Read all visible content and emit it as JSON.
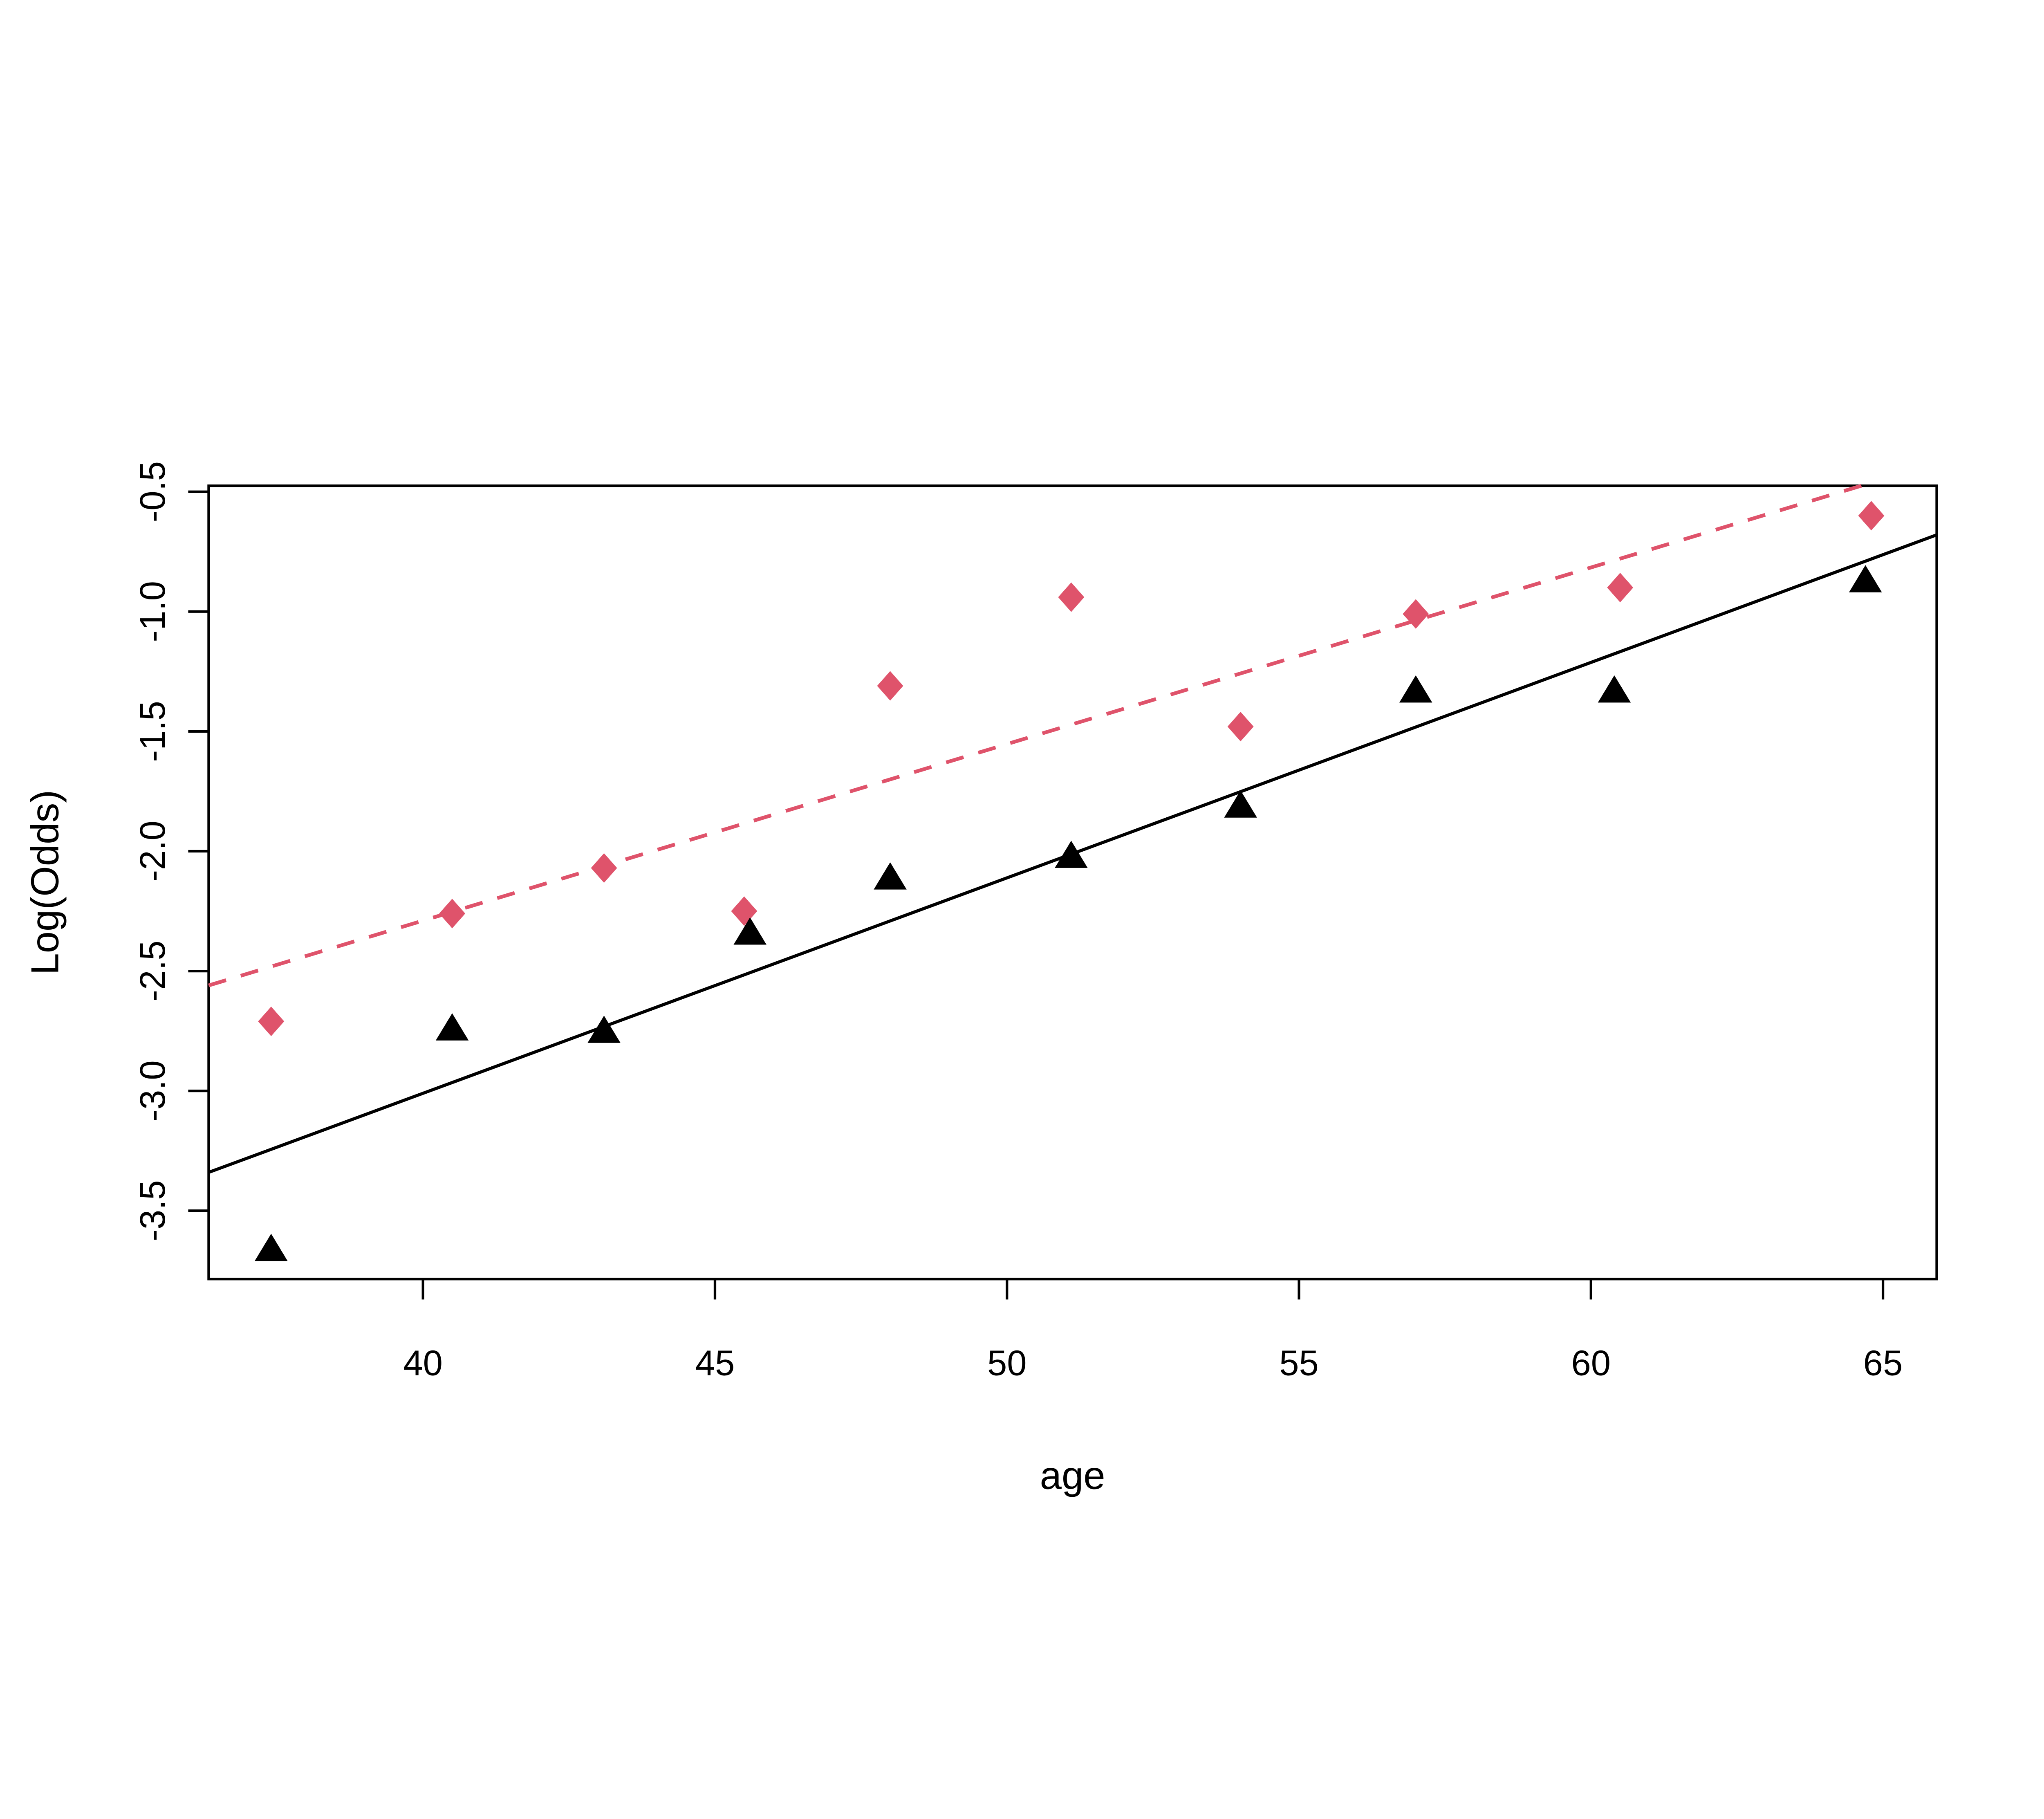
{
  "chart_data": {
    "type": "scatter",
    "title": "",
    "xlabel": "age",
    "ylabel": "Log(Odds)",
    "x_ticks": [
      40,
      45,
      50,
      55,
      60,
      65
    ],
    "y_ticks": [
      -0.5,
      -1.0,
      -1.5,
      -2.0,
      -2.5,
      -3.0,
      -3.5
    ],
    "xlim": [
      36.33,
      65.92
    ],
    "ylim": [
      -3.785,
      -0.475
    ],
    "grid": false,
    "legend": "none",
    "background_color": "#ffffff",
    "series": [
      {
        "name": "diamond-series",
        "marker": "diamond",
        "color": "#DF536B",
        "points": [
          [
            37.4,
            -2.71
          ],
          [
            40.5,
            -2.26
          ],
          [
            43.1,
            -2.07
          ],
          [
            45.5,
            -2.25
          ],
          [
            48.0,
            -1.31
          ],
          [
            51.1,
            -0.94
          ],
          [
            54.0,
            -1.48
          ],
          [
            57.0,
            -1.01
          ],
          [
            60.5,
            -0.9
          ],
          [
            64.8,
            -0.6
          ]
        ]
      },
      {
        "name": "triangle-series",
        "marker": "triangle",
        "color": "#000000",
        "points": [
          [
            37.4,
            -3.66
          ],
          [
            40.5,
            -2.74
          ],
          [
            43.1,
            -2.75
          ],
          [
            45.6,
            -2.34
          ],
          [
            48.0,
            -2.11
          ],
          [
            51.1,
            -2.02
          ],
          [
            54.0,
            -1.81
          ],
          [
            57.0,
            -1.33
          ],
          [
            60.4,
            -1.33
          ],
          [
            64.7,
            -0.87
          ]
        ]
      }
    ],
    "lines": [
      {
        "name": "dashed-fit-line",
        "style": "dashed",
        "color": "#DF536B",
        "x1": 36.33,
        "y1": -2.56,
        "x2": 64.63,
        "y2": -0.475
      },
      {
        "name": "solid-fit-line",
        "style": "solid",
        "color": "#000000",
        "x1": 36.33,
        "y1": -3.34,
        "x2": 65.92,
        "y2": -0.68
      }
    ]
  }
}
